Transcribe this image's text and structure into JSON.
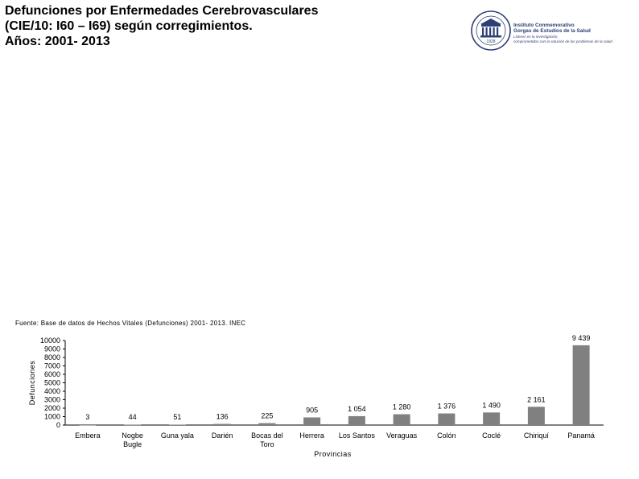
{
  "header": {
    "title_line1": "Defunciones por Enfermedades Cerebrovasculares",
    "title_line2": "(CIE/10: I60 – I69) según corregimientos.",
    "title_line3": "Años: 2001- 2013"
  },
  "logo": {
    "line1": "Instituto Conmemorativo",
    "line2": "Gorgas de Estudios de la Salud",
    "line3": "Líderes en la investigación,",
    "line4": "comprometidos con la solución de los problemas de la salud",
    "seal_year": "1928",
    "brand_color": "#2d3f74"
  },
  "source": "Fuente: Base de datos de Hechos Vitales (Defunciones) 2001- 2013. INEC",
  "chart_data": {
    "type": "bar",
    "title": "",
    "xlabel": "Provincias",
    "ylabel": "Defunciones",
    "ylim": [
      0,
      10000
    ],
    "yticks": [
      0,
      1000,
      2000,
      3000,
      4000,
      5000,
      6000,
      7000,
      8000,
      9000,
      10000
    ],
    "categories": [
      "Embera",
      "Nogbe Bugle",
      "Guna yala",
      "Darién",
      "Bocas del Toro",
      "Herrera",
      "Los Santos",
      "Veraguas",
      "Colón",
      "Coclé",
      "Chiriquí",
      "Panamá"
    ],
    "category_lines": [
      [
        "Embera"
      ],
      [
        "Nogbe",
        "Bugle"
      ],
      [
        "Guna yala"
      ],
      [
        "Darién"
      ],
      [
        "Bocas del",
        "Toro"
      ],
      [
        "Herrera"
      ],
      [
        "Los Santos"
      ],
      [
        "Veraguas"
      ],
      [
        "Colón"
      ],
      [
        "Coclé"
      ],
      [
        "Chiriquí"
      ],
      [
        "Panamá"
      ]
    ],
    "values": [
      3,
      44,
      51,
      136,
      225,
      905,
      1054,
      1280,
      1376,
      1490,
      2161,
      9439
    ],
    "value_labels": [
      "3",
      "44",
      "51",
      "136",
      "225",
      "905",
      "1 054",
      "1 280",
      "1 376",
      "1 490",
      "2 161",
      "9 439"
    ],
    "bar_color": "#808080",
    "grid": false,
    "legend": "none"
  }
}
